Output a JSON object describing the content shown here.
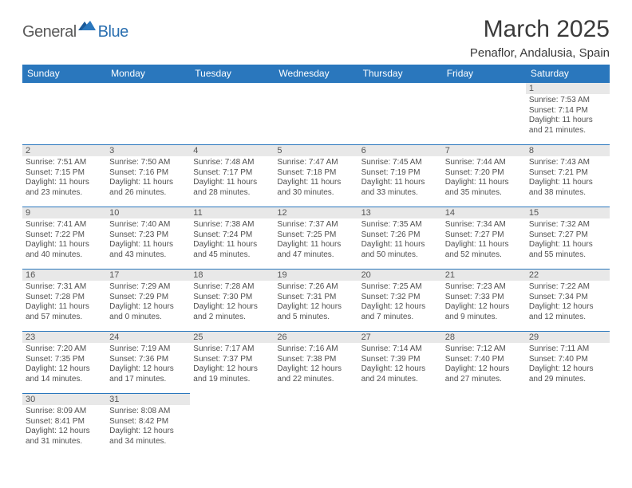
{
  "logo": {
    "general": "General",
    "blue": "Blue"
  },
  "title": {
    "month": "March 2025",
    "location": "Penaflor, Andalusia, Spain"
  },
  "colors": {
    "header_bg": "#2a77bd",
    "header_fg": "#ffffff",
    "cell_border": "#2a77bd",
    "daynum_bg": "#e8e8e8",
    "text": "#505050",
    "logo_blue": "#2a6fb0"
  },
  "weekdays": [
    "Sunday",
    "Monday",
    "Tuesday",
    "Wednesday",
    "Thursday",
    "Friday",
    "Saturday"
  ],
  "weeks": [
    [
      null,
      null,
      null,
      null,
      null,
      null,
      {
        "n": "1",
        "sr": "7:53 AM",
        "ss": "7:14 PM",
        "dl": "11 hours and 21 minutes."
      }
    ],
    [
      {
        "n": "2",
        "sr": "7:51 AM",
        "ss": "7:15 PM",
        "dl": "11 hours and 23 minutes."
      },
      {
        "n": "3",
        "sr": "7:50 AM",
        "ss": "7:16 PM",
        "dl": "11 hours and 26 minutes."
      },
      {
        "n": "4",
        "sr": "7:48 AM",
        "ss": "7:17 PM",
        "dl": "11 hours and 28 minutes."
      },
      {
        "n": "5",
        "sr": "7:47 AM",
        "ss": "7:18 PM",
        "dl": "11 hours and 30 minutes."
      },
      {
        "n": "6",
        "sr": "7:45 AM",
        "ss": "7:19 PM",
        "dl": "11 hours and 33 minutes."
      },
      {
        "n": "7",
        "sr": "7:44 AM",
        "ss": "7:20 PM",
        "dl": "11 hours and 35 minutes."
      },
      {
        "n": "8",
        "sr": "7:43 AM",
        "ss": "7:21 PM",
        "dl": "11 hours and 38 minutes."
      }
    ],
    [
      {
        "n": "9",
        "sr": "7:41 AM",
        "ss": "7:22 PM",
        "dl": "11 hours and 40 minutes."
      },
      {
        "n": "10",
        "sr": "7:40 AM",
        "ss": "7:23 PM",
        "dl": "11 hours and 43 minutes."
      },
      {
        "n": "11",
        "sr": "7:38 AM",
        "ss": "7:24 PM",
        "dl": "11 hours and 45 minutes."
      },
      {
        "n": "12",
        "sr": "7:37 AM",
        "ss": "7:25 PM",
        "dl": "11 hours and 47 minutes."
      },
      {
        "n": "13",
        "sr": "7:35 AM",
        "ss": "7:26 PM",
        "dl": "11 hours and 50 minutes."
      },
      {
        "n": "14",
        "sr": "7:34 AM",
        "ss": "7:27 PM",
        "dl": "11 hours and 52 minutes."
      },
      {
        "n": "15",
        "sr": "7:32 AM",
        "ss": "7:27 PM",
        "dl": "11 hours and 55 minutes."
      }
    ],
    [
      {
        "n": "16",
        "sr": "7:31 AM",
        "ss": "7:28 PM",
        "dl": "11 hours and 57 minutes."
      },
      {
        "n": "17",
        "sr": "7:29 AM",
        "ss": "7:29 PM",
        "dl": "12 hours and 0 minutes."
      },
      {
        "n": "18",
        "sr": "7:28 AM",
        "ss": "7:30 PM",
        "dl": "12 hours and 2 minutes."
      },
      {
        "n": "19",
        "sr": "7:26 AM",
        "ss": "7:31 PM",
        "dl": "12 hours and 5 minutes."
      },
      {
        "n": "20",
        "sr": "7:25 AM",
        "ss": "7:32 PM",
        "dl": "12 hours and 7 minutes."
      },
      {
        "n": "21",
        "sr": "7:23 AM",
        "ss": "7:33 PM",
        "dl": "12 hours and 9 minutes."
      },
      {
        "n": "22",
        "sr": "7:22 AM",
        "ss": "7:34 PM",
        "dl": "12 hours and 12 minutes."
      }
    ],
    [
      {
        "n": "23",
        "sr": "7:20 AM",
        "ss": "7:35 PM",
        "dl": "12 hours and 14 minutes."
      },
      {
        "n": "24",
        "sr": "7:19 AM",
        "ss": "7:36 PM",
        "dl": "12 hours and 17 minutes."
      },
      {
        "n": "25",
        "sr": "7:17 AM",
        "ss": "7:37 PM",
        "dl": "12 hours and 19 minutes."
      },
      {
        "n": "26",
        "sr": "7:16 AM",
        "ss": "7:38 PM",
        "dl": "12 hours and 22 minutes."
      },
      {
        "n": "27",
        "sr": "7:14 AM",
        "ss": "7:39 PM",
        "dl": "12 hours and 24 minutes."
      },
      {
        "n": "28",
        "sr": "7:12 AM",
        "ss": "7:40 PM",
        "dl": "12 hours and 27 minutes."
      },
      {
        "n": "29",
        "sr": "7:11 AM",
        "ss": "7:40 PM",
        "dl": "12 hours and 29 minutes."
      }
    ],
    [
      {
        "n": "30",
        "sr": "8:09 AM",
        "ss": "8:41 PM",
        "dl": "12 hours and 31 minutes."
      },
      {
        "n": "31",
        "sr": "8:08 AM",
        "ss": "8:42 PM",
        "dl": "12 hours and 34 minutes."
      },
      null,
      null,
      null,
      null,
      null
    ]
  ],
  "labels": {
    "sunrise": "Sunrise: ",
    "sunset": "Sunset: ",
    "daylight": "Daylight: "
  }
}
